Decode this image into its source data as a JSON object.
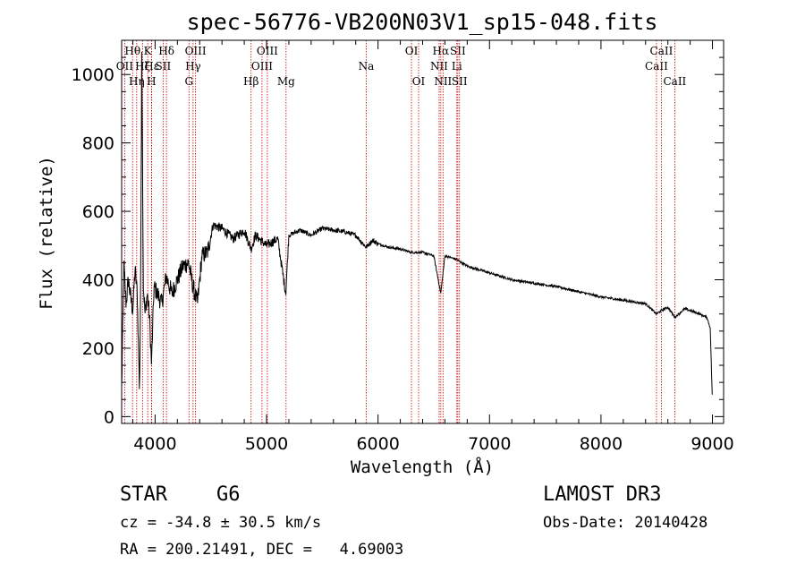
{
  "chart_data": {
    "type": "line",
    "title": "spec-56776-VB200N03V1_sp15-048.fits",
    "xlabel": "Wavelength (Å)",
    "ylabel": "Flux (relative)",
    "xlim": [
      3700,
      9100
    ],
    "ylim": [
      -20,
      1100
    ],
    "xticks": [
      4000,
      5000,
      6000,
      7000,
      8000,
      9000
    ],
    "yticks": [
      0,
      200,
      400,
      600,
      800,
      1000
    ],
    "spectrum_anchors": {
      "x": [
        3700,
        3720,
        3740,
        3760,
        3780,
        3800,
        3820,
        3840,
        3860,
        3870,
        3880,
        3895,
        3910,
        3930,
        3950,
        3968,
        3990,
        4020,
        4060,
        4100,
        4150,
        4200,
        4250,
        4300,
        4340,
        4380,
        4420,
        4470,
        4520,
        4600,
        4700,
        4800,
        4861,
        4900,
        5000,
        5100,
        5172,
        5200,
        5300,
        5400,
        5500,
        5600,
        5700,
        5800,
        5893,
        5950,
        6000,
        6100,
        6200,
        6300,
        6400,
        6500,
        6563,
        6600,
        6700,
        6800,
        6900,
        7000,
        7200,
        7400,
        7600,
        7800,
        8000,
        8200,
        8400,
        8498,
        8542,
        8600,
        8662,
        8750,
        8850,
        8950,
        8980,
        8990,
        9000
      ],
      "y": [
        80,
        440,
        330,
        400,
        350,
        310,
        430,
        360,
        80,
        340,
        1080,
        380,
        300,
        360,
        290,
        150,
        380,
        360,
        330,
        410,
        360,
        400,
        440,
        450,
        380,
        330,
        470,
        480,
        560,
        550,
        520,
        545,
        490,
        530,
        500,
        520,
        360,
        530,
        545,
        530,
        550,
        545,
        540,
        530,
        495,
        515,
        505,
        495,
        490,
        480,
        480,
        470,
        360,
        470,
        460,
        440,
        430,
        420,
        400,
        390,
        380,
        365,
        350,
        340,
        330,
        300,
        310,
        320,
        290,
        315,
        305,
        290,
        260,
        150,
        40
      ]
    },
    "emission_lines": [
      {
        "name": "OII",
        "wavelength": 3727,
        "row": 2
      },
      {
        "name": "Hθ",
        "wavelength": 3798,
        "row": 1
      },
      {
        "name": "Hη",
        "wavelength": 3835,
        "row": 3
      },
      {
        "name": "Hζ",
        "wavelength": 3889,
        "row": 2
      },
      {
        "name": "K",
        "wavelength": 3934,
        "row": 1
      },
      {
        "name": "H",
        "wavelength": 3968,
        "row": 3
      },
      {
        "name": "Hε",
        "wavelength": 3970,
        "row": 2
      },
      {
        "name": "SII",
        "wavelength": 4072,
        "row": 2
      },
      {
        "name": "Hδ",
        "wavelength": 4102,
        "row": 1
      },
      {
        "name": "G",
        "wavelength": 4304,
        "row": 3
      },
      {
        "name": "Hγ",
        "wavelength": 4341,
        "row": 2
      },
      {
        "name": "OIII",
        "wavelength": 4363,
        "row": 1
      },
      {
        "name": "Hβ",
        "wavelength": 4861,
        "row": 3
      },
      {
        "name": "OIII",
        "wavelength": 4959,
        "row": 2
      },
      {
        "name": "OIII",
        "wavelength": 5007,
        "row": 1
      },
      {
        "name": "Mg",
        "wavelength": 5175,
        "row": 3
      },
      {
        "name": "Na",
        "wavelength": 5894,
        "row": 2
      },
      {
        "name": "OI",
        "wavelength": 6300,
        "row": 1
      },
      {
        "name": "OI",
        "wavelength": 6364,
        "row": 3
      },
      {
        "name": "NII",
        "wavelength": 6548,
        "row": 2
      },
      {
        "name": "Hα",
        "wavelength": 6563,
        "row": 1
      },
      {
        "name": "NII",
        "wavelength": 6583,
        "row": 3
      },
      {
        "name": "Li",
        "wavelength": 6707,
        "row": 2
      },
      {
        "name": "SII",
        "wavelength": 6716,
        "row": 1
      },
      {
        "name": "SII",
        "wavelength": 6731,
        "row": 3
      },
      {
        "name": "CaII",
        "wavelength": 8498,
        "row": 2
      },
      {
        "name": "CaII",
        "wavelength": 8542,
        "row": 1
      },
      {
        "name": "CaII",
        "wavelength": 8662,
        "row": 3
      }
    ],
    "colors": {
      "spectrum": "#000000",
      "lines": "#cc0000",
      "axes": "#000000"
    }
  },
  "info": {
    "class": "STAR",
    "subclass": "G6",
    "survey": "LAMOST DR3",
    "cz": "cz = -34.8 ± 30.5 km/s",
    "obs_date": "Obs-Date: 20140428",
    "coords": "RA = 200.21491, DEC =   4.69003"
  }
}
